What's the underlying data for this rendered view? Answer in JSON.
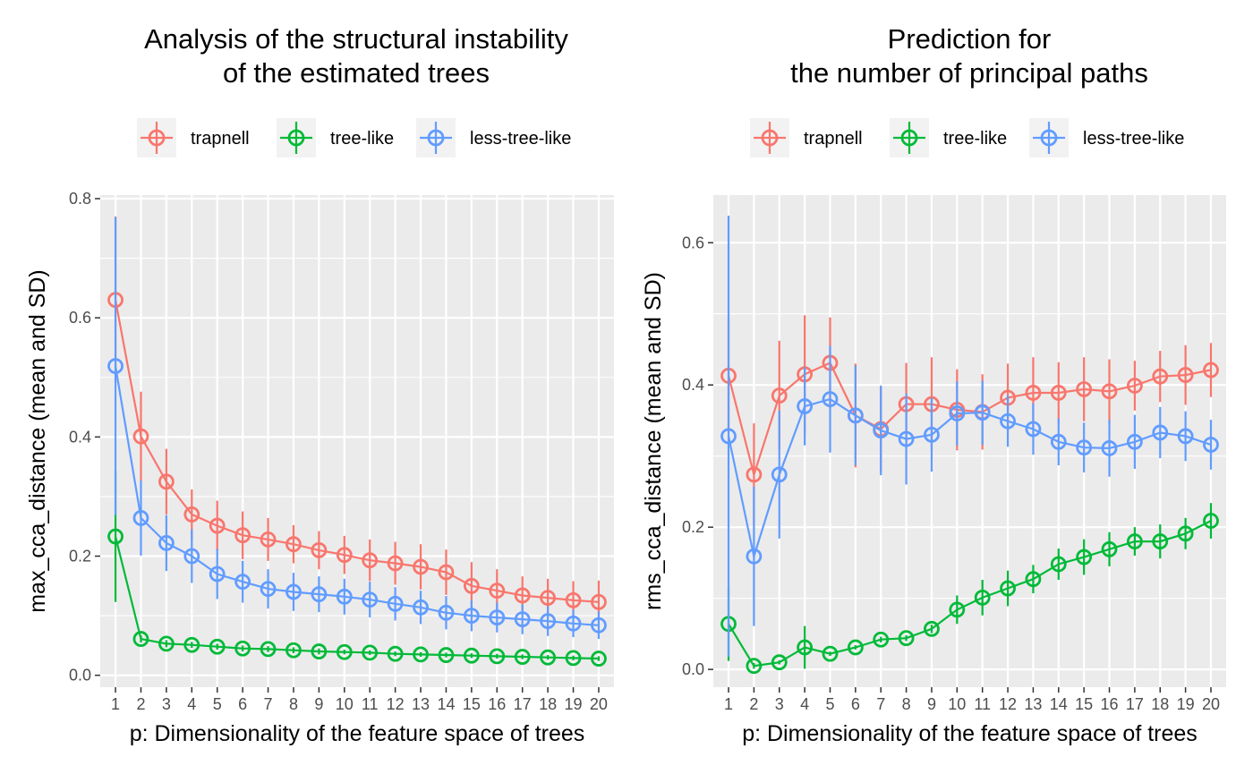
{
  "colors": {
    "panel_bg": "#ebebeb",
    "grid": "#ffffff",
    "trapnell": "#f8766d",
    "tree_like": "#00ba38",
    "less_tree_like": "#619cff"
  },
  "chart_data": [
    {
      "type": "line",
      "title_lines": [
        "Analysis of the structural instability",
        "of the estimated trees"
      ],
      "xlabel": "p: Dimensionality of the feature space of trees",
      "ylabel": "max_cca_distance (mean and SD)",
      "x": [
        1,
        2,
        3,
        4,
        5,
        6,
        7,
        8,
        9,
        10,
        11,
        12,
        13,
        14,
        15,
        16,
        17,
        18,
        19,
        20
      ],
      "xlim": [
        0.4,
        20.6
      ],
      "ylim": [
        -0.02,
        0.806
      ],
      "yticks": [
        0.0,
        0.2,
        0.4,
        0.6,
        0.8
      ],
      "ytick_labels": [
        "0.0",
        "0.2",
        "0.4",
        "0.6",
        "0.8"
      ],
      "legend_position": "top",
      "series": [
        {
          "name": "trapnell",
          "color": "#f8766d",
          "mean": [
            0.63,
            0.401,
            0.325,
            0.27,
            0.251,
            0.235,
            0.228,
            0.22,
            0.21,
            0.202,
            0.193,
            0.188,
            0.182,
            0.173,
            0.15,
            0.142,
            0.134,
            0.13,
            0.126,
            0.123
          ],
          "sd": [
            0.14,
            0.075,
            0.055,
            0.042,
            0.042,
            0.04,
            0.036,
            0.032,
            0.032,
            0.032,
            0.035,
            0.036,
            0.038,
            0.038,
            0.04,
            0.036,
            0.032,
            0.032,
            0.032,
            0.036
          ]
        },
        {
          "name": "tree-like",
          "color": "#00ba38",
          "mean": [
            0.233,
            0.061,
            0.053,
            0.051,
            0.048,
            0.045,
            0.044,
            0.042,
            0.04,
            0.039,
            0.038,
            0.036,
            0.035,
            0.034,
            0.033,
            0.032,
            0.031,
            0.03,
            0.029,
            0.028
          ],
          "sd": [
            0.11,
            0.006,
            0.006,
            0.005,
            0.005,
            0.005,
            0.005,
            0.005,
            0.005,
            0.004,
            0.004,
            0.004,
            0.004,
            0.004,
            0.004,
            0.004,
            0.004,
            0.004,
            0.004,
            0.004
          ]
        },
        {
          "name": "less-tree-like",
          "color": "#619cff",
          "mean": [
            0.519,
            0.264,
            0.222,
            0.2,
            0.17,
            0.157,
            0.145,
            0.14,
            0.136,
            0.132,
            0.127,
            0.12,
            0.114,
            0.105,
            0.1,
            0.097,
            0.094,
            0.091,
            0.087,
            0.084
          ],
          "sd": [
            0.25,
            0.063,
            0.047,
            0.045,
            0.042,
            0.035,
            0.033,
            0.032,
            0.03,
            0.03,
            0.03,
            0.028,
            0.028,
            0.028,
            0.026,
            0.025,
            0.025,
            0.025,
            0.023,
            0.023
          ]
        }
      ]
    },
    {
      "type": "line",
      "title_lines": [
        "Prediction for",
        "the number of principal paths"
      ],
      "xlabel": "p: Dimensionality of the feature space of trees",
      "ylabel": "rms_cca_distance (mean and SD)",
      "x": [
        1,
        2,
        3,
        4,
        5,
        6,
        7,
        8,
        9,
        10,
        11,
        12,
        13,
        14,
        15,
        16,
        17,
        18,
        19,
        20
      ],
      "xlim": [
        0.4,
        20.6
      ],
      "ylim": [
        -0.025,
        0.667
      ],
      "yticks": [
        0.0,
        0.2,
        0.4,
        0.6
      ],
      "ytick_labels": [
        "0.0",
        "0.2",
        "0.4",
        "0.6"
      ],
      "legend_position": "top",
      "series": [
        {
          "name": "trapnell",
          "color": "#f8766d",
          "mean": [
            0.413,
            0.274,
            0.385,
            0.415,
            0.431,
            0.357,
            0.338,
            0.373,
            0.373,
            0.365,
            0.362,
            0.382,
            0.389,
            0.389,
            0.394,
            0.391,
            0.399,
            0.412,
            0.414,
            0.421
          ],
          "sd": [
            0.08,
            0.072,
            0.077,
            0.083,
            0.064,
            0.073,
            0.06,
            0.058,
            0.066,
            0.057,
            0.053,
            0.048,
            0.05,
            0.043,
            0.045,
            0.045,
            0.035,
            0.036,
            0.042,
            0.038
          ]
        },
        {
          "name": "tree-like",
          "color": "#00ba38",
          "mean": [
            0.064,
            0.005,
            0.01,
            0.031,
            0.022,
            0.031,
            0.042,
            0.044,
            0.057,
            0.084,
            0.101,
            0.114,
            0.127,
            0.148,
            0.158,
            0.169,
            0.18,
            0.18,
            0.191,
            0.209
          ],
          "sd": [
            0.052,
            0.004,
            0.003,
            0.03,
            0.003,
            0.003,
            0.004,
            0.004,
            0.006,
            0.02,
            0.025,
            0.025,
            0.02,
            0.022,
            0.025,
            0.024,
            0.02,
            0.024,
            0.022,
            0.025
          ]
        },
        {
          "name": "less-tree-like",
          "color": "#619cff",
          "mean": [
            0.328,
            0.159,
            0.274,
            0.37,
            0.38,
            0.357,
            0.336,
            0.324,
            0.33,
            0.36,
            0.361,
            0.349,
            0.338,
            0.32,
            0.312,
            0.311,
            0.32,
            0.333,
            0.328,
            0.316
          ],
          "sd": [
            0.31,
            0.098,
            0.09,
            0.055,
            0.075,
            0.07,
            0.063,
            0.064,
            0.052,
            0.045,
            0.045,
            0.036,
            0.036,
            0.033,
            0.035,
            0.04,
            0.038,
            0.036,
            0.035,
            0.035
          ]
        }
      ]
    }
  ]
}
